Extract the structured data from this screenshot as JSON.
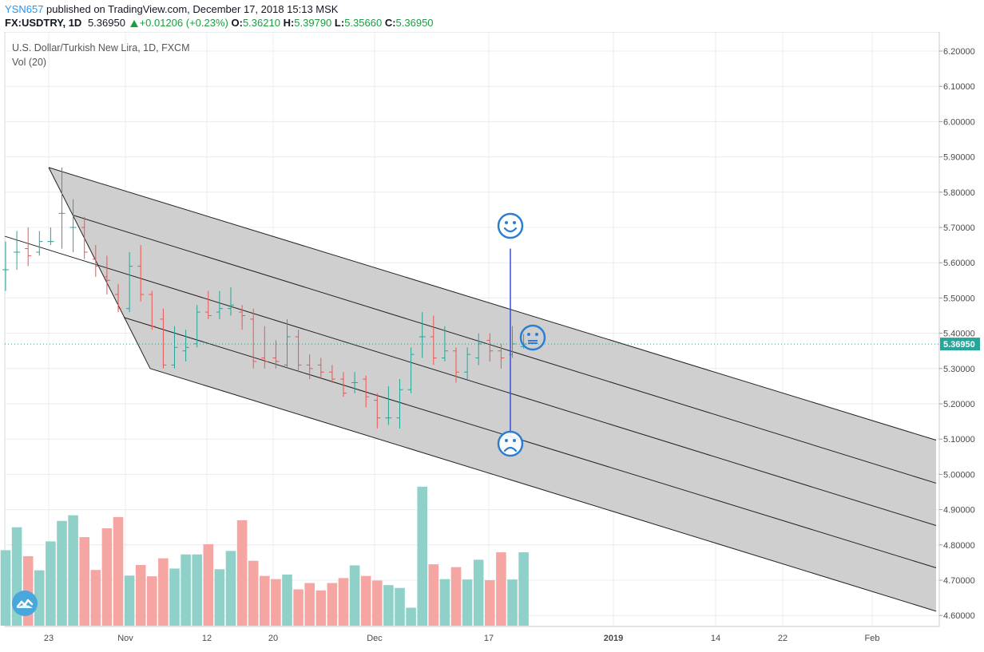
{
  "header": {
    "user": "YSN657",
    "published": "published on TradingView.com, December 17, 2018 15:13 MSK",
    "symbol": "FX:USDTRY, 1D",
    "last": "5.36950",
    "change": "+0.01206 (+0.23%)",
    "o_label": "O:",
    "o_value": "5.36210",
    "h_label": "H:",
    "h_value": "5.39790",
    "l_label": "L:",
    "l_value": "5.35660",
    "c_label": "C:",
    "c_value": "5.36950"
  },
  "pane": {
    "title": "U.S. Dollar/Turkish New Lira, 1D, FXCM",
    "volume_label": "Vol (20)"
  },
  "colors": {
    "up": "#26a69a",
    "down": "#ef5350",
    "vol_up": "#8fd1c8",
    "vol_down": "#f5a6a3",
    "channel_fill": "#cccccc",
    "price_line": "#26a69a",
    "price_label_bg": "#26a69a",
    "annotation": "#2a7fd4",
    "grid": "#e8ecef"
  },
  "icons": [
    "happy-face-icon",
    "neutral-face-icon",
    "sad-face-icon",
    "tradingview-logo-icon"
  ],
  "chart_data": {
    "type": "ohlc",
    "price_scale": {
      "min": 4.6,
      "max": 6.2,
      "ticks": [
        "6.20000",
        "6.10000",
        "6.00000",
        "5.90000",
        "5.80000",
        "5.70000",
        "5.60000",
        "5.50000",
        "5.40000",
        "5.30000",
        "5.20000",
        "5.10000",
        "5.00000",
        "4.90000",
        "4.80000",
        "4.70000",
        "4.60000"
      ],
      "last_label": "5.36950",
      "last_value": 5.3695
    },
    "time_axis": [
      "23",
      "Nov",
      "12",
      "20",
      "Dec",
      "17",
      "2019",
      "14",
      "22",
      "Feb"
    ],
    "bars": [
      {
        "o": 5.58,
        "h": 5.66,
        "l": 5.52,
        "c": 5.58,
        "v": 4.785
      },
      {
        "o": 5.63,
        "h": 5.69,
        "l": 5.58,
        "c": 5.63,
        "v": 4.85
      },
      {
        "o": 5.64,
        "h": 5.7,
        "l": 5.59,
        "c": 5.62,
        "v": 4.768
      },
      {
        "o": 5.63,
        "h": 5.69,
        "l": 5.62,
        "c": 5.66,
        "v": 4.728
      },
      {
        "o": 5.66,
        "h": 5.7,
        "l": 5.65,
        "c": 5.66,
        "v": 4.81
      },
      {
        "o": 5.74,
        "h": 5.87,
        "l": 5.64,
        "c": 5.74,
        "v": 4.868
      },
      {
        "o": 5.7,
        "h": 5.78,
        "l": 5.63,
        "c": 5.7,
        "v": 4.884
      },
      {
        "o": 5.7,
        "h": 5.73,
        "l": 5.61,
        "c": 5.63,
        "v": 4.822
      },
      {
        "o": 5.61,
        "h": 5.65,
        "l": 5.56,
        "c": 5.59,
        "v": 4.729
      },
      {
        "o": 5.56,
        "h": 5.62,
        "l": 5.51,
        "c": 5.55,
        "v": 4.847
      },
      {
        "o": 5.51,
        "h": 5.54,
        "l": 5.46,
        "c": 5.47,
        "v": 4.879
      },
      {
        "o": 5.47,
        "h": 5.63,
        "l": 5.46,
        "c": 5.59,
        "v": 4.713
      },
      {
        "o": 5.59,
        "h": 5.65,
        "l": 5.49,
        "c": 5.51,
        "v": 4.743
      },
      {
        "o": 5.51,
        "h": 5.52,
        "l": 5.41,
        "c": 5.42,
        "v": 4.711
      },
      {
        "o": 5.44,
        "h": 5.47,
        "l": 5.3,
        "c": 5.31,
        "v": 4.762
      },
      {
        "o": 5.31,
        "h": 5.42,
        "l": 5.3,
        "c": 5.36,
        "v": 4.733
      },
      {
        "o": 5.35,
        "h": 5.41,
        "l": 5.32,
        "c": 5.36,
        "v": 4.773
      },
      {
        "o": 5.37,
        "h": 5.48,
        "l": 5.36,
        "c": 5.46,
        "v": 4.773
      },
      {
        "o": 5.46,
        "h": 5.52,
        "l": 5.44,
        "c": 5.45,
        "v": 4.802
      },
      {
        "o": 5.46,
        "h": 5.52,
        "l": 5.44,
        "c": 5.47,
        "v": 4.731
      },
      {
        "o": 5.47,
        "h": 5.53,
        "l": 5.45,
        "c": 5.48,
        "v": 4.783
      },
      {
        "o": 5.46,
        "h": 5.48,
        "l": 5.41,
        "c": 5.45,
        "v": 4.87
      },
      {
        "o": 5.44,
        "h": 5.47,
        "l": 5.3,
        "c": 5.32,
        "v": 4.755
      },
      {
        "o": 5.33,
        "h": 5.42,
        "l": 5.3,
        "c": 5.32,
        "v": 4.712
      },
      {
        "o": 5.33,
        "h": 5.38,
        "l": 5.3,
        "c": 5.32,
        "v": 4.703
      },
      {
        "o": 5.31,
        "h": 5.44,
        "l": 5.3,
        "c": 5.39,
        "v": 4.716
      },
      {
        "o": 5.39,
        "h": 5.41,
        "l": 5.29,
        "c": 5.31,
        "v": 4.674
      },
      {
        "o": 5.31,
        "h": 5.34,
        "l": 5.27,
        "c": 5.3,
        "v": 4.692
      },
      {
        "o": 5.31,
        "h": 5.33,
        "l": 5.27,
        "c": 5.29,
        "v": 4.671
      },
      {
        "o": 5.29,
        "h": 5.31,
        "l": 5.26,
        "c": 5.27,
        "v": 4.692
      },
      {
        "o": 5.27,
        "h": 5.29,
        "l": 5.22,
        "c": 5.23,
        "v": 4.706
      },
      {
        "o": 5.26,
        "h": 5.29,
        "l": 5.23,
        "c": 5.26,
        "v": 4.742
      },
      {
        "o": 5.27,
        "h": 5.28,
        "l": 5.19,
        "c": 5.22,
        "v": 4.712
      },
      {
        "o": 5.21,
        "h": 5.23,
        "l": 5.13,
        "c": 5.16,
        "v": 4.699
      },
      {
        "o": 5.16,
        "h": 5.25,
        "l": 5.14,
        "c": 5.16,
        "v": 4.686
      },
      {
        "o": 5.16,
        "h": 5.27,
        "l": 5.13,
        "c": 5.24,
        "v": 4.678
      },
      {
        "o": 5.24,
        "h": 5.36,
        "l": 5.23,
        "c": 5.34,
        "v": 4.622
      },
      {
        "o": 5.39,
        "h": 5.46,
        "l": 5.33,
        "c": 5.39,
        "v": 4.965
      },
      {
        "o": 5.39,
        "h": 5.45,
        "l": 5.31,
        "c": 5.33,
        "v": 4.745
      },
      {
        "o": 5.33,
        "h": 5.42,
        "l": 5.32,
        "c": 5.35,
        "v": 4.703
      },
      {
        "o": 5.35,
        "h": 5.36,
        "l": 5.26,
        "c": 5.29,
        "v": 4.737
      },
      {
        "o": 5.29,
        "h": 5.36,
        "l": 5.27,
        "c": 5.34,
        "v": 4.702
      },
      {
        "o": 5.33,
        "h": 5.4,
        "l": 5.31,
        "c": 5.37,
        "v": 4.758
      },
      {
        "o": 5.38,
        "h": 5.4,
        "l": 5.32,
        "c": 5.35,
        "v": 4.7
      },
      {
        "o": 5.35,
        "h": 5.37,
        "l": 5.3,
        "c": 5.33,
        "v": 4.779
      },
      {
        "o": 5.34,
        "h": 5.42,
        "l": 5.33,
        "c": 5.37,
        "v": 4.702
      },
      {
        "o": 5.3621,
        "h": 5.3979,
        "l": 5.3566,
        "c": 5.3695,
        "v": 4.779
      }
    ]
  }
}
